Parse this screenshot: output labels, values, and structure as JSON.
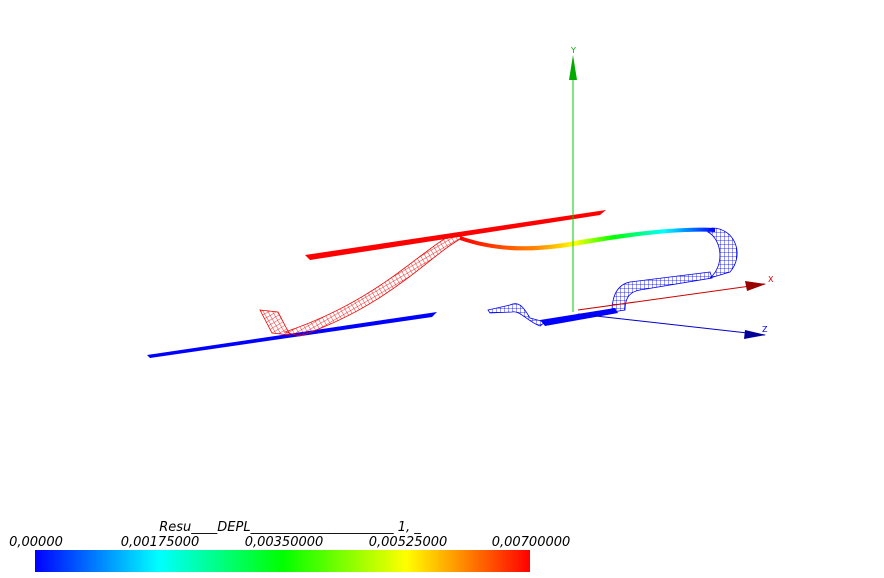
{
  "axes": {
    "y": "Y",
    "x": "X",
    "z": "Z"
  },
  "legend": {
    "title": "Resu____DEPL______________________ 1, _",
    "ticks": [
      "0,00000",
      "0,00175000",
      "0,00350000",
      "0,00525000",
      "0,00700000"
    ]
  }
}
